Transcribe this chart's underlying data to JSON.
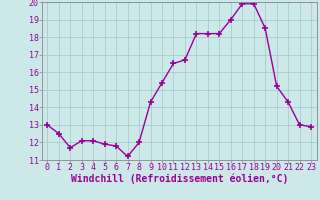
{
  "x": [
    0,
    1,
    2,
    3,
    4,
    5,
    6,
    7,
    8,
    9,
    10,
    11,
    12,
    13,
    14,
    15,
    16,
    17,
    18,
    19,
    20,
    21,
    22,
    23
  ],
  "y": [
    13,
    12.5,
    11.7,
    12.1,
    12.1,
    11.9,
    11.8,
    11.2,
    12.0,
    14.3,
    15.4,
    16.5,
    16.7,
    18.2,
    18.2,
    18.2,
    19.0,
    19.9,
    19.9,
    18.5,
    15.2,
    14.3,
    13.0,
    12.9
  ],
  "line_color": "#990099",
  "marker": "+",
  "marker_size": 5,
  "marker_lw": 1.2,
  "bg_color": "#cce8e8",
  "grid_color": "#aacccc",
  "xlabel": "Windchill (Refroidissement éolien,°C)",
  "xlabel_color": "#990099",
  "ylim": [
    11,
    20
  ],
  "xlim": [
    -0.5,
    23.5
  ],
  "yticks": [
    11,
    12,
    13,
    14,
    15,
    16,
    17,
    18,
    19,
    20
  ],
  "xticks": [
    0,
    1,
    2,
    3,
    4,
    5,
    6,
    7,
    8,
    9,
    10,
    11,
    12,
    13,
    14,
    15,
    16,
    17,
    18,
    19,
    20,
    21,
    22,
    23
  ],
  "tick_color": "#990099",
  "tick_fontsize": 6,
  "xlabel_fontsize": 7,
  "line_width": 1.0,
  "spine_color": "#888888"
}
